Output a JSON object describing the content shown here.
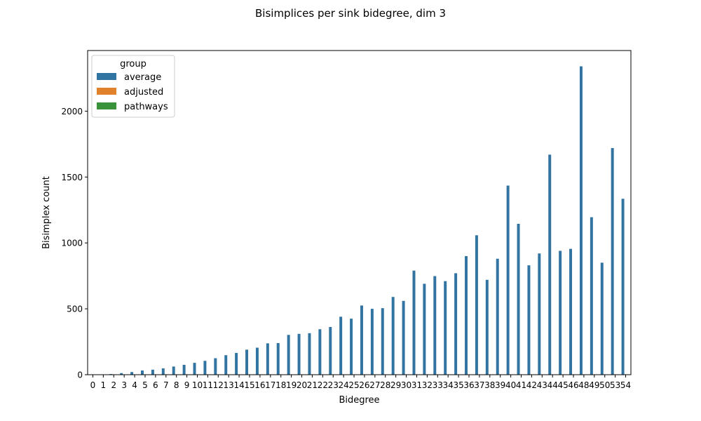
{
  "chart_data": {
    "type": "bar",
    "title": "Bisimplices per sink bidegree, dim 3",
    "xlabel": "Bidegree",
    "ylabel": "Bisimplex count",
    "ylim": [
      0,
      2460
    ],
    "yticks": [
      0,
      500,
      1000,
      1500,
      2000
    ],
    "categories": [
      "0",
      "1",
      "2",
      "3",
      "4",
      "5",
      "6",
      "7",
      "8",
      "9",
      "10",
      "11",
      "12",
      "13",
      "14",
      "15",
      "16",
      "17",
      "18",
      "19",
      "20",
      "21",
      "22",
      "23",
      "24",
      "25",
      "26",
      "27",
      "28",
      "29",
      "30",
      "31",
      "32",
      "33",
      "34",
      "35",
      "36",
      "37",
      "38",
      "39",
      "40",
      "41",
      "42",
      "43",
      "44",
      "45",
      "46",
      "48",
      "49",
      "50",
      "53",
      "54"
    ],
    "legend": {
      "title": "group",
      "position": "upper left"
    },
    "series": [
      {
        "name": "average",
        "color": "#3274a1",
        "values": [
          0,
          1,
          5,
          12,
          20,
          32,
          38,
          48,
          62,
          75,
          90,
          105,
          125,
          148,
          165,
          190,
          205,
          238,
          240,
          302,
          310,
          315,
          345,
          362,
          440,
          425,
          525,
          500,
          505,
          590,
          560,
          790,
          690,
          748,
          710,
          770,
          900,
          1058,
          720,
          880,
          1435,
          1145,
          830,
          920,
          1670,
          940,
          955,
          2340,
          1195,
          850,
          1720,
          1335
        ]
      },
      {
        "name": "adjusted",
        "color": "#e1812c",
        "values": [
          0,
          0,
          0,
          0,
          0,
          0,
          0,
          0,
          0,
          0,
          0,
          0,
          0,
          0,
          0,
          0,
          0,
          0,
          0,
          0,
          0,
          0,
          0,
          0,
          0,
          0,
          0,
          0,
          0,
          0,
          0,
          0,
          0,
          0,
          0,
          0,
          0,
          0,
          0,
          0,
          0,
          0,
          0,
          0,
          0,
          0,
          0,
          0,
          0,
          0,
          0,
          0
        ]
      },
      {
        "name": "pathways",
        "color": "#3a923a",
        "values": [
          0,
          0,
          0,
          0,
          0,
          0,
          0,
          0,
          0,
          0,
          0,
          0,
          0,
          0,
          0,
          0,
          0,
          0,
          0,
          0,
          0,
          0,
          0,
          0,
          0,
          0,
          0,
          0,
          0,
          0,
          0,
          0,
          0,
          0,
          0,
          0,
          0,
          0,
          0,
          0,
          0,
          0,
          0,
          0,
          0,
          0,
          0,
          0,
          0,
          0,
          0,
          0
        ]
      }
    ],
    "grid": false
  }
}
